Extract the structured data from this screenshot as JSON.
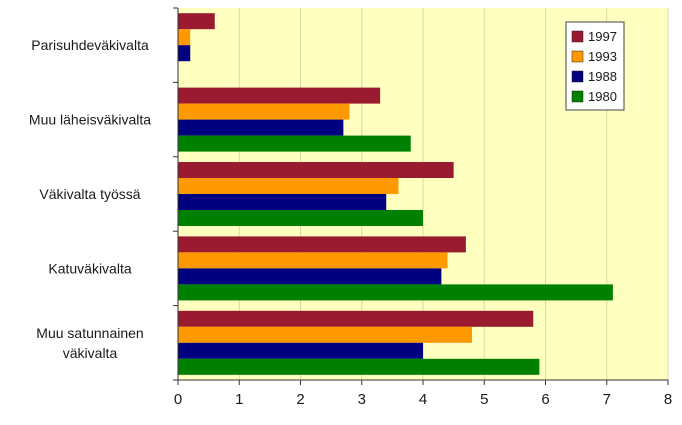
{
  "chart_data": {
    "type": "bar",
    "orientation": "horizontal",
    "categories": [
      "Parisuhdeväkivalta",
      "Muu läheisväkivalta",
      "Väkivalta työssä",
      "Katuväkivalta",
      "Muu satunnainen väkivalta"
    ],
    "series": [
      {
        "name": "1997",
        "color": "#9a1b2f",
        "values": [
          0.6,
          3.3,
          4.5,
          4.7,
          5.8
        ]
      },
      {
        "name": "1993",
        "color": "#ff9900",
        "values": [
          0.2,
          2.8,
          3.6,
          4.4,
          4.8
        ]
      },
      {
        "name": "1988",
        "color": "#000080",
        "values": [
          0.2,
          2.7,
          3.4,
          4.3,
          4.0
        ]
      },
      {
        "name": "1980",
        "color": "#008000",
        "values": [
          0.0,
          3.8,
          4.0,
          7.1,
          5.9
        ]
      }
    ],
    "xlim": [
      0,
      8
    ],
    "xticks": [
      "0",
      "1",
      "2",
      "3",
      "4",
      "5",
      "6",
      "7",
      "8"
    ],
    "grid": true,
    "legend_position": "top-right",
    "plot_background": "#ffffc0",
    "title": "",
    "xlabel": "",
    "ylabel": ""
  }
}
